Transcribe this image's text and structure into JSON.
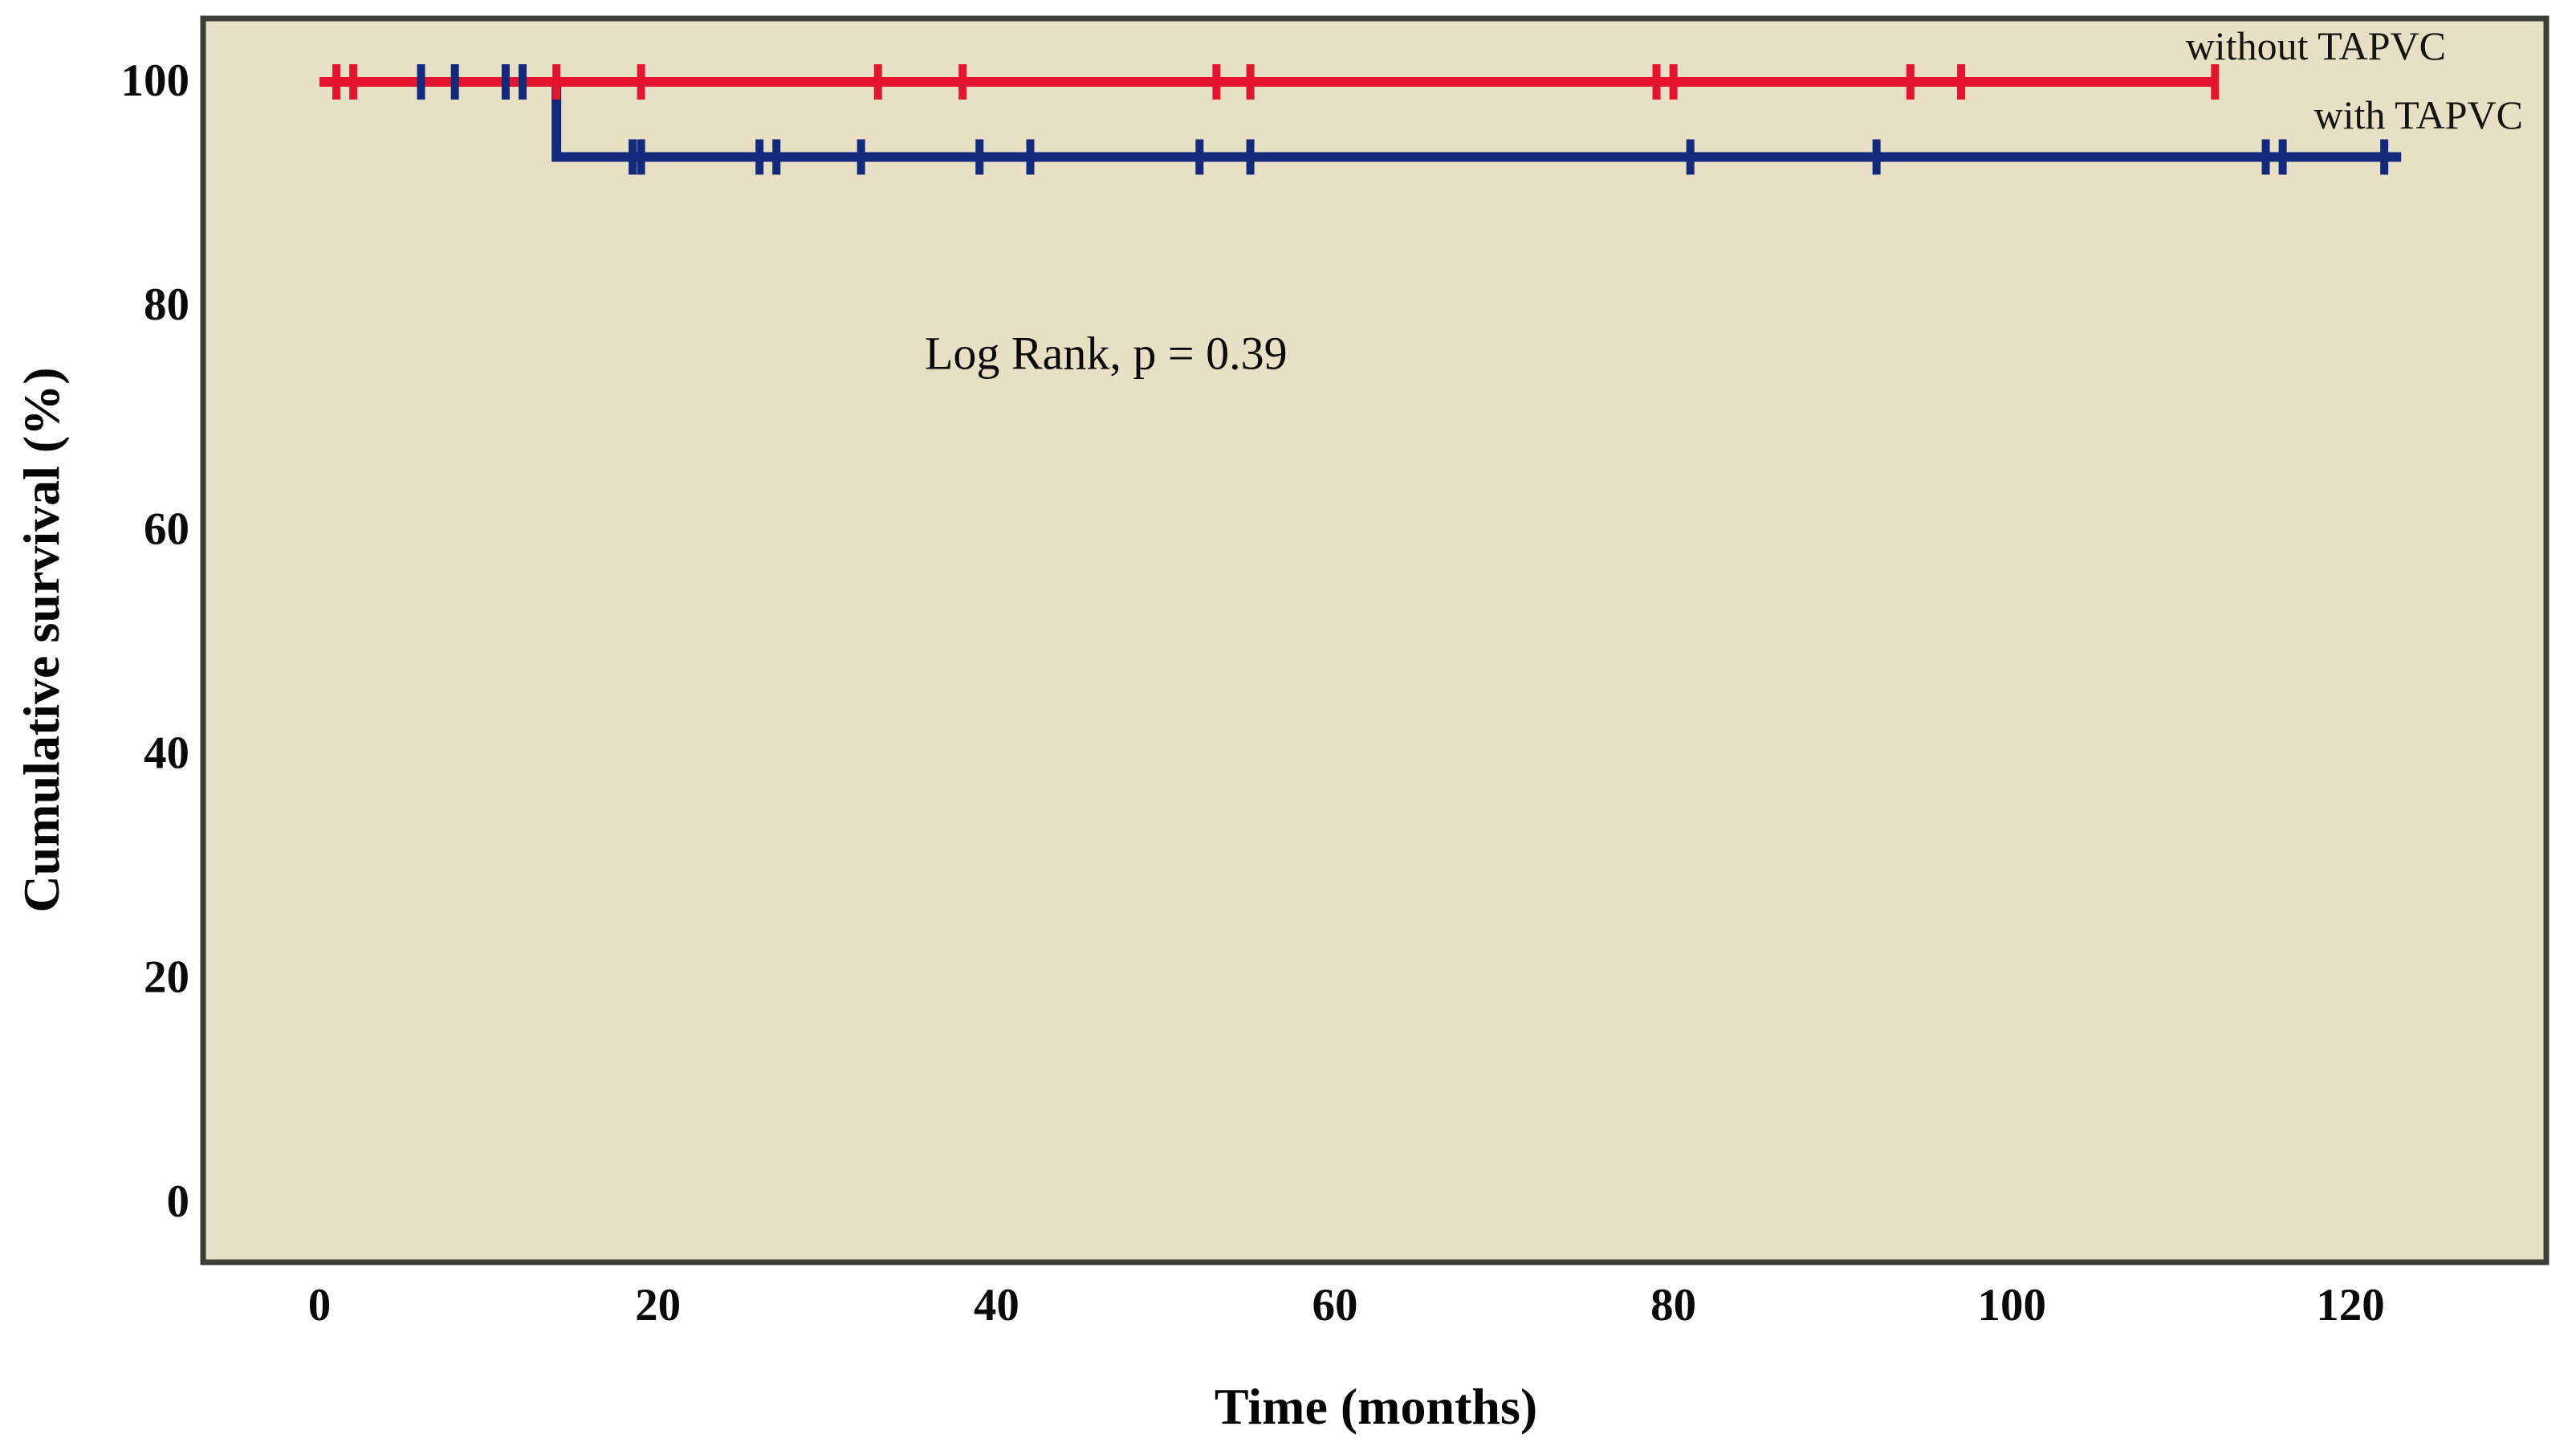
{
  "figure": {
    "background": "#ffffff",
    "plot_background": "#e8e0c5",
    "border_color": "#3c3c38"
  },
  "chart_data": {
    "type": "line",
    "subtype": "kaplan-meier-step-curves",
    "title": "",
    "xlabel": "Time (months)",
    "ylabel": "Cumulative survival (%)",
    "annotation": "Log Rank, p = 0.39",
    "x_ticks": [
      0,
      20,
      40,
      60,
      80,
      100,
      120
    ],
    "y_ticks": [
      100,
      80,
      60,
      40,
      20,
      0
    ],
    "xlim": [
      -7,
      132
    ],
    "ylim": [
      -5.5,
      105.5
    ],
    "grid": false,
    "legend_position": "inline-top-right",
    "series": [
      {
        "name": "without TAPVC",
        "color": "#e4152f",
        "steps": [
          [
            0,
            100
          ],
          [
            112,
            100
          ]
        ],
        "censors": [
          [
            1,
            100
          ],
          [
            2,
            100
          ],
          [
            14,
            100
          ],
          [
            19,
            100
          ],
          [
            33,
            100
          ],
          [
            38,
            100
          ],
          [
            53,
            100
          ],
          [
            55,
            100
          ],
          [
            79,
            100
          ],
          [
            80,
            100
          ],
          [
            94,
            100
          ],
          [
            97,
            100
          ],
          [
            112,
            100
          ]
        ]
      },
      {
        "name": "with TAPVC",
        "color": "#13297c",
        "steps": [
          [
            0,
            100
          ],
          [
            14,
            100
          ],
          [
            14,
            93.3
          ],
          [
            123,
            93.3
          ]
        ],
        "censors": [
          [
            6,
            100
          ],
          [
            8,
            100
          ],
          [
            11,
            100
          ],
          [
            12,
            100
          ],
          [
            18.5,
            93.3
          ],
          [
            19,
            93.3
          ],
          [
            26,
            93.3
          ],
          [
            27,
            93.3
          ],
          [
            32,
            93.3
          ],
          [
            39,
            93.3
          ],
          [
            42,
            93.3
          ],
          [
            52,
            93.3
          ],
          [
            55,
            93.3
          ],
          [
            81,
            93.3
          ],
          [
            92,
            93.3
          ],
          [
            115,
            93.3
          ],
          [
            116,
            93.3
          ],
          [
            122,
            93.3
          ]
        ]
      }
    ]
  }
}
